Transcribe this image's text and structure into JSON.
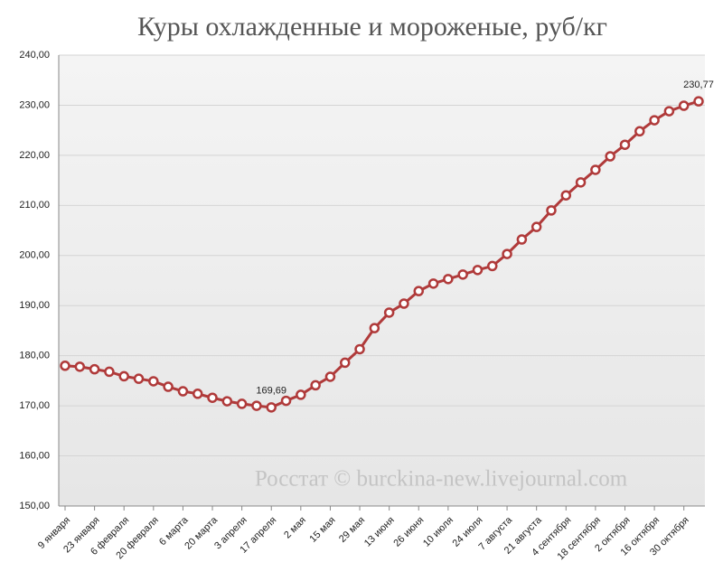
{
  "chart_data": {
    "type": "line",
    "title": "Куры охлажденные и мороженые, руб/кг",
    "annotation": "Росстат © burckina-new.livejournal.com",
    "categories": [
      "9 января",
      null,
      "23 января",
      null,
      "6 февраля",
      null,
      "20 февраля",
      null,
      "6 марта",
      null,
      "20 марта",
      null,
      "3 апреля",
      null,
      "17 апреля",
      null,
      "2 мая",
      null,
      "15 мая",
      null,
      "29 мая",
      null,
      "13 июня",
      null,
      "26 июня",
      null,
      "10 июля",
      null,
      "24 июля",
      null,
      "7 августа",
      null,
      "21 августа",
      null,
      "4 сентября",
      null,
      "18 сентября",
      null,
      "2 октября",
      null,
      "16 октября",
      null,
      "30 октября",
      null
    ],
    "series": [
      {
        "name": "Куры охлажденные и мороженые",
        "color": "#b03a3a",
        "values": [
          178.0,
          177.8,
          177.3,
          176.8,
          175.9,
          175.4,
          174.9,
          173.8,
          172.9,
          172.4,
          171.6,
          170.9,
          170.4,
          170.0,
          169.69,
          171.0,
          172.2,
          174.1,
          175.8,
          178.6,
          181.3,
          185.5,
          188.6,
          190.4,
          192.9,
          194.4,
          195.3,
          196.2,
          197.1,
          197.9,
          200.3,
          203.2,
          205.7,
          209.0,
          212.0,
          214.6,
          217.1,
          219.8,
          222.1,
          224.8,
          227.0,
          228.8,
          229.9,
          230.77
        ],
        "value_labels": [
          null,
          null,
          null,
          null,
          null,
          null,
          null,
          null,
          null,
          null,
          null,
          null,
          null,
          null,
          "169,69",
          null,
          null,
          null,
          null,
          null,
          null,
          null,
          null,
          null,
          null,
          null,
          null,
          null,
          null,
          null,
          null,
          null,
          null,
          null,
          null,
          null,
          null,
          null,
          null,
          null,
          null,
          null,
          null,
          "230,77"
        ]
      }
    ],
    "ylim": [
      150,
      240
    ],
    "yticks": [
      {
        "value": 150,
        "label": "150,00"
      },
      {
        "value": 160,
        "label": "160,00"
      },
      {
        "value": 170,
        "label": "170,00"
      },
      {
        "value": 180,
        "label": "180,00"
      },
      {
        "value": 190,
        "label": "190,00"
      },
      {
        "value": 200,
        "label": "200,00"
      },
      {
        "value": 210,
        "label": "210,00"
      },
      {
        "value": 220,
        "label": "220,00"
      },
      {
        "value": 230,
        "label": "230,00"
      },
      {
        "value": 240,
        "label": "240,00"
      }
    ],
    "grid": true
  }
}
